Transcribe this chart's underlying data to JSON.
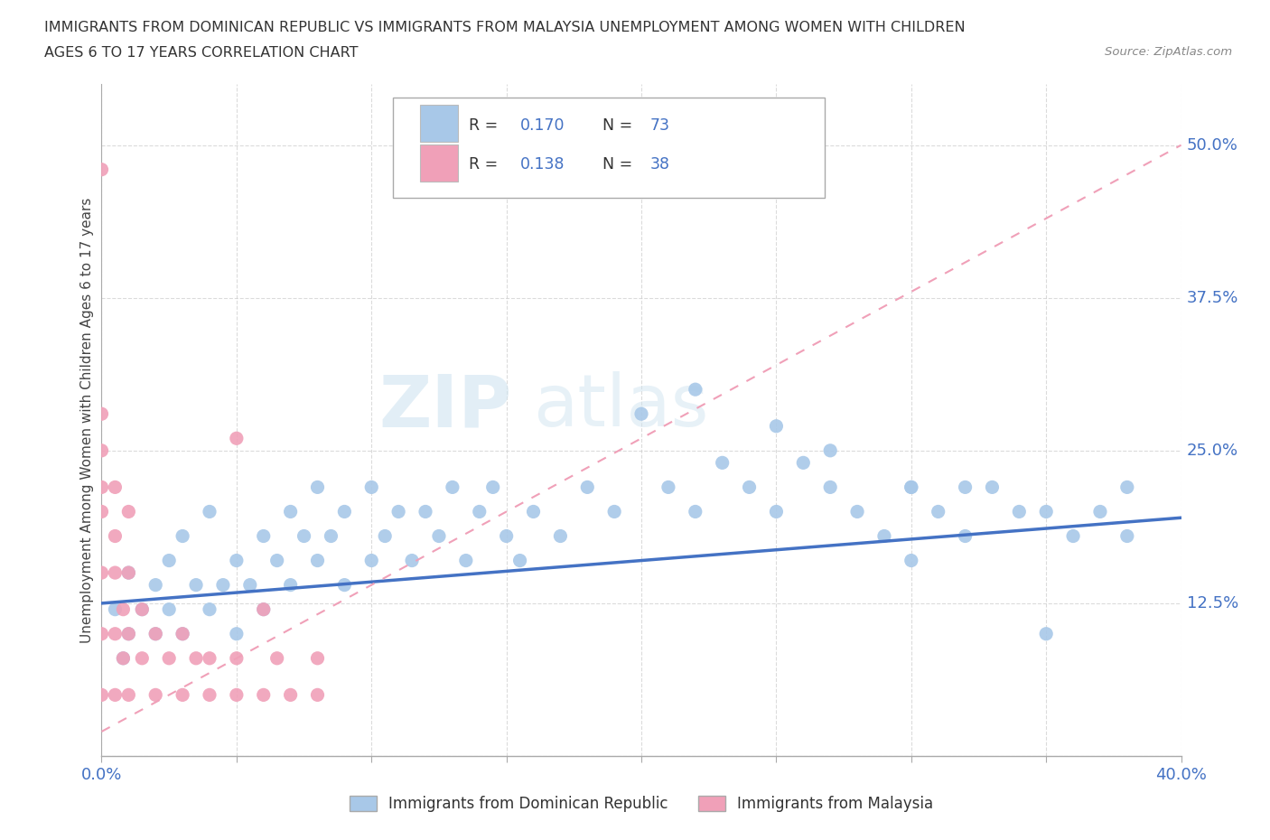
{
  "title_line1": "IMMIGRANTS FROM DOMINICAN REPUBLIC VS IMMIGRANTS FROM MALAYSIA UNEMPLOYMENT AMONG WOMEN WITH CHILDREN",
  "title_line2": "AGES 6 TO 17 YEARS CORRELATION CHART",
  "source": "Source: ZipAtlas.com",
  "ylabel": "Unemployment Among Women with Children Ages 6 to 17 years",
  "xlim": [
    0.0,
    0.4
  ],
  "ylim": [
    0.0,
    0.55
  ],
  "color_blue": "#A8C8E8",
  "color_pink": "#F0A0B8",
  "color_blue_line": "#4472C4",
  "color_pink_line": "#F0A0B8",
  "color_axis_text": "#4472C4",
  "watermark_zip": "ZIP",
  "watermark_atlas": "atlas",
  "blue_x": [
    0.005,
    0.008,
    0.01,
    0.01,
    0.015,
    0.02,
    0.02,
    0.025,
    0.025,
    0.03,
    0.03,
    0.035,
    0.04,
    0.04,
    0.045,
    0.05,
    0.05,
    0.055,
    0.06,
    0.06,
    0.065,
    0.07,
    0.07,
    0.075,
    0.08,
    0.08,
    0.085,
    0.09,
    0.09,
    0.1,
    0.1,
    0.105,
    0.11,
    0.115,
    0.12,
    0.125,
    0.13,
    0.135,
    0.14,
    0.145,
    0.15,
    0.155,
    0.16,
    0.17,
    0.18,
    0.19,
    0.2,
    0.21,
    0.22,
    0.23,
    0.24,
    0.25,
    0.26,
    0.27,
    0.28,
    0.29,
    0.3,
    0.3,
    0.31,
    0.32,
    0.33,
    0.34,
    0.35,
    0.36,
    0.37,
    0.38,
    0.22,
    0.25,
    0.27,
    0.3,
    0.32,
    0.35,
    0.38
  ],
  "blue_y": [
    0.12,
    0.08,
    0.15,
    0.1,
    0.12,
    0.1,
    0.14,
    0.12,
    0.16,
    0.1,
    0.18,
    0.14,
    0.12,
    0.2,
    0.14,
    0.1,
    0.16,
    0.14,
    0.18,
    0.12,
    0.16,
    0.2,
    0.14,
    0.18,
    0.16,
    0.22,
    0.18,
    0.14,
    0.2,
    0.16,
    0.22,
    0.18,
    0.2,
    0.16,
    0.2,
    0.18,
    0.22,
    0.16,
    0.2,
    0.22,
    0.18,
    0.16,
    0.2,
    0.18,
    0.22,
    0.2,
    0.28,
    0.22,
    0.2,
    0.24,
    0.22,
    0.2,
    0.24,
    0.22,
    0.2,
    0.18,
    0.22,
    0.16,
    0.2,
    0.18,
    0.22,
    0.2,
    0.2,
    0.18,
    0.2,
    0.22,
    0.3,
    0.27,
    0.25,
    0.22,
    0.22,
    0.1,
    0.18
  ],
  "pink_x": [
    0.0,
    0.0,
    0.0,
    0.0,
    0.0,
    0.0,
    0.0,
    0.0,
    0.005,
    0.005,
    0.005,
    0.005,
    0.005,
    0.008,
    0.008,
    0.01,
    0.01,
    0.01,
    0.01,
    0.015,
    0.015,
    0.02,
    0.02,
    0.025,
    0.03,
    0.03,
    0.035,
    0.04,
    0.04,
    0.05,
    0.05,
    0.06,
    0.065,
    0.07,
    0.08,
    0.08,
    0.05,
    0.06
  ],
  "pink_y": [
    0.05,
    0.1,
    0.15,
    0.2,
    0.22,
    0.25,
    0.28,
    0.48,
    0.05,
    0.1,
    0.15,
    0.18,
    0.22,
    0.08,
    0.12,
    0.05,
    0.1,
    0.15,
    0.2,
    0.08,
    0.12,
    0.05,
    0.1,
    0.08,
    0.05,
    0.1,
    0.08,
    0.05,
    0.08,
    0.05,
    0.08,
    0.05,
    0.08,
    0.05,
    0.05,
    0.08,
    0.26,
    0.12
  ],
  "blue_trend_x": [
    0.0,
    0.4
  ],
  "blue_trend_y": [
    0.125,
    0.195
  ],
  "pink_trend_x": [
    0.0,
    0.4
  ],
  "pink_trend_y": [
    0.02,
    0.5
  ]
}
